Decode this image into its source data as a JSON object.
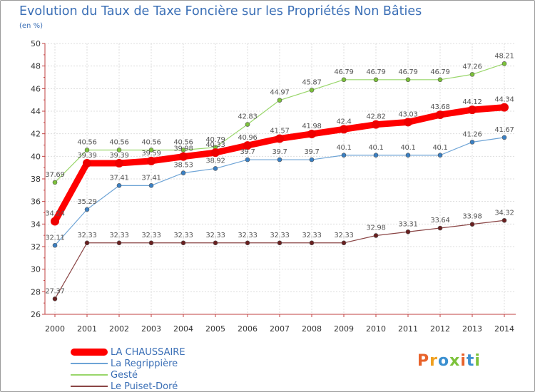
{
  "title": "Evolution du Taux de Taxe Foncière sur les Propriétés Non Bâties",
  "unit_label": "(en %)",
  "logo": {
    "text": "Proxiti",
    "colors": [
      "#e8632b",
      "#f0a020",
      "#3a8fd0",
      "#7cc23a",
      "#e8632b",
      "#3a8fd0",
      "#7cc23a"
    ]
  },
  "chart_data": {
    "type": "line",
    "title": "Evolution du Taux de Taxe Foncière sur les Propriétés Non Bâties",
    "xlabel": "",
    "ylabel": "(en %)",
    "x": [
      2000,
      2001,
      2002,
      2003,
      2004,
      2005,
      2006,
      2007,
      2008,
      2009,
      2010,
      2011,
      2012,
      2013,
      2014
    ],
    "ylim": [
      26,
      50
    ],
    "yticks": [
      26,
      28,
      30,
      32,
      34,
      36,
      38,
      40,
      42,
      44,
      46,
      48,
      50
    ],
    "grid": true,
    "series": [
      {
        "name": "Gesté",
        "color": "#99d66a",
        "dot": "#7cc23a",
        "width": 1.2,
        "r": 3,
        "values": [
          37.69,
          40.56,
          40.56,
          40.56,
          40.56,
          40.79,
          42.83,
          44.97,
          45.87,
          46.79,
          46.79,
          46.79,
          46.79,
          47.26,
          48.21
        ],
        "labels": [
          "37.69",
          "40.56",
          "40.56",
          "40.56",
          "40.56",
          "40.79",
          "42.83",
          "44.97",
          "45.87",
          "46.79",
          "46.79",
          "46.79",
          "46.79",
          "47.26",
          "48.21"
        ]
      },
      {
        "name": "La Regrippière",
        "color": "#6ea4d6",
        "dot": "#3a80c4",
        "width": 1.2,
        "r": 3,
        "values": [
          32.11,
          35.29,
          37.41,
          37.41,
          38.53,
          38.92,
          39.7,
          39.7,
          39.7,
          40.1,
          40.1,
          40.1,
          40.1,
          41.26,
          41.67
        ],
        "labels": [
          "32.11",
          "35.29",
          "37.41",
          "37.41",
          "38.53",
          "38.92",
          "39.7",
          "39.7",
          "39.7",
          "40.1",
          "40.1",
          "40.1",
          "40.1",
          "41.26",
          "41.67"
        ]
      },
      {
        "name": "Le Puiset-Doré",
        "color": "#8a4545",
        "dot": "#6a1f1f",
        "width": 1.2,
        "r": 3,
        "values": [
          27.37,
          32.33,
          32.33,
          32.33,
          32.33,
          32.33,
          32.33,
          32.33,
          32.33,
          32.33,
          32.98,
          33.31,
          33.64,
          33.98,
          34.32
        ],
        "labels": [
          "27.37",
          "32.33",
          "32.33",
          "32.33",
          "32.33",
          "32.33",
          "32.33",
          "32.33",
          "32.33",
          "32.33",
          "32.98",
          "33.31",
          "33.64",
          "33.98",
          "34.32"
        ]
      },
      {
        "name": "LA CHAUSSAIRE",
        "color": "#ff0000",
        "dot": "#ee0000",
        "width": 9,
        "r": 6,
        "values": [
          34.24,
          39.39,
          39.39,
          39.59,
          39.98,
          40.33,
          40.96,
          41.57,
          41.98,
          42.4,
          42.82,
          43.03,
          43.68,
          44.12,
          44.34
        ],
        "labels": [
          "34.24",
          "39.39",
          "39.39",
          "39.59",
          "39.98",
          "40.33",
          "40.96",
          "41.57",
          "41.98",
          "42.4",
          "42.82",
          "43.03",
          "43.68",
          "44.12",
          "44.34"
        ]
      }
    ],
    "legend": [
      {
        "name": "LA CHAUSSAIRE",
        "color": "#ff0000",
        "thick": true
      },
      {
        "name": "La Regrippière",
        "color": "#6ea4d6",
        "thick": false
      },
      {
        "name": "Gesté",
        "color": "#99d66a",
        "thick": false
      },
      {
        "name": "Le Puiset-Doré",
        "color": "#8a4545",
        "thick": false
      }
    ]
  }
}
